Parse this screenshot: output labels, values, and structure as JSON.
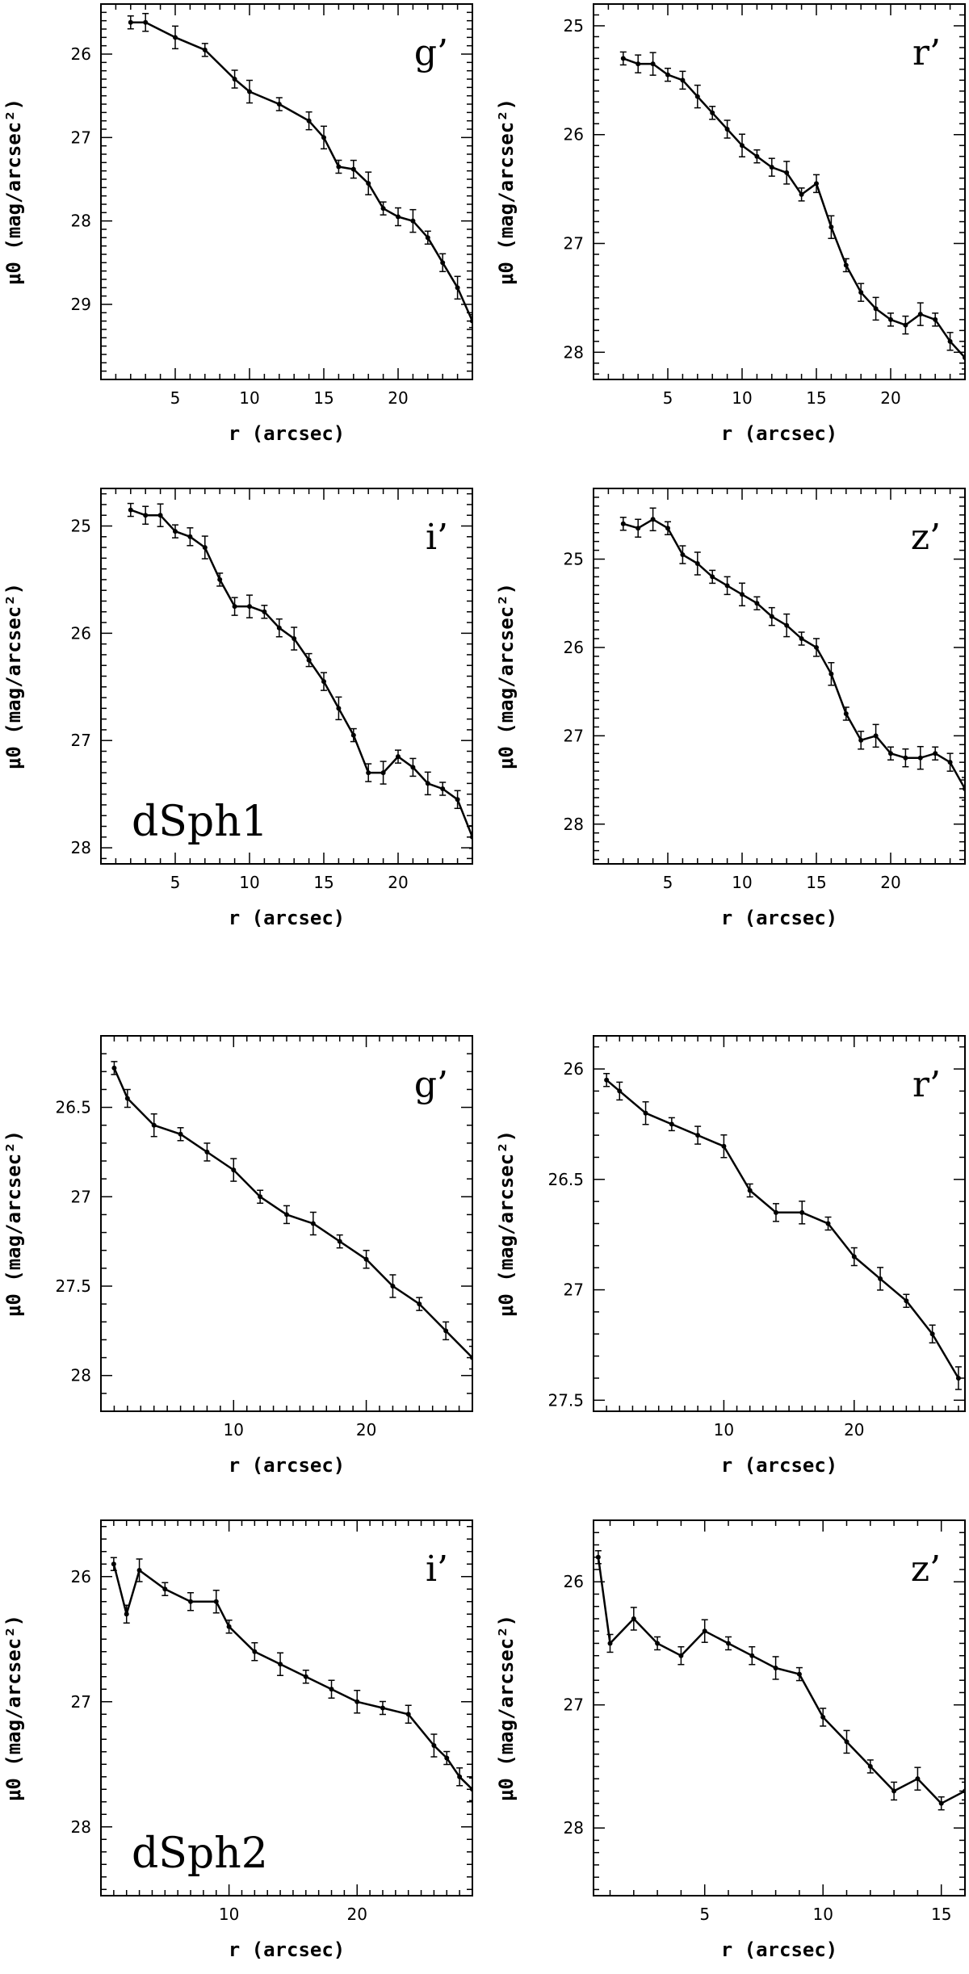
{
  "chart_data": [
    {
      "id": "dsph1-g",
      "type": "line",
      "galaxy_label": "",
      "band": "g’",
      "xlabel": "r (arcsec)",
      "ylabel": "μ0 (mag/arcsec²)",
      "xlim": [
        0,
        25
      ],
      "ylim": [
        29.9,
        25.4
      ],
      "xticks": [
        5,
        10,
        15,
        20
      ],
      "yticks": [
        26,
        27,
        28,
        29
      ],
      "series": [
        {
          "name": "g’",
          "r": [
            2,
            3,
            5,
            7,
            9,
            10,
            12,
            14,
            15,
            16,
            17,
            18,
            19,
            20,
            21,
            22,
            23,
            24,
            25
          ],
          "mu": [
            25.62,
            25.62,
            25.8,
            25.95,
            26.3,
            26.45,
            26.6,
            26.8,
            27.0,
            27.35,
            27.38,
            27.55,
            27.85,
            27.95,
            28.0,
            28.2,
            28.5,
            28.8,
            29.2
          ]
        }
      ]
    },
    {
      "id": "dsph1-r",
      "type": "line",
      "galaxy_label": "",
      "band": "r’",
      "xlabel": "r (arcsec)",
      "ylabel": "μ0 (mag/arcsec²)",
      "xlim": [
        0,
        25
      ],
      "ylim": [
        28.25,
        24.8
      ],
      "xticks": [
        5,
        10,
        15,
        20
      ],
      "yticks": [
        25,
        26,
        27,
        28
      ],
      "series": [
        {
          "name": "r’",
          "r": [
            2,
            3,
            4,
            5,
            6,
            7,
            8,
            9,
            10,
            11,
            12,
            13,
            14,
            15,
            16,
            17,
            18,
            19,
            20,
            21,
            22,
            23,
            24,
            25
          ],
          "mu": [
            25.3,
            25.35,
            25.35,
            25.45,
            25.5,
            25.65,
            25.8,
            25.95,
            26.1,
            26.2,
            26.3,
            26.35,
            26.55,
            26.45,
            26.85,
            27.2,
            27.45,
            27.6,
            27.7,
            27.75,
            27.65,
            27.7,
            27.9,
            28.05
          ]
        }
      ]
    },
    {
      "id": "dsph1-i",
      "type": "line",
      "galaxy_label": "dSph1",
      "band": "i’",
      "xlabel": "r (arcsec)",
      "ylabel": "μ0 (mag/arcsec²)",
      "xlim": [
        0,
        25
      ],
      "ylim": [
        28.15,
        24.65
      ],
      "xticks": [
        5,
        10,
        15,
        20
      ],
      "yticks": [
        25,
        26,
        27,
        28
      ],
      "series": [
        {
          "name": "i’",
          "r": [
            2,
            3,
            4,
            5,
            6,
            7,
            8,
            9,
            10,
            11,
            12,
            13,
            14,
            15,
            16,
            17,
            18,
            19,
            20,
            21,
            22,
            23,
            24,
            25
          ],
          "mu": [
            24.85,
            24.9,
            24.9,
            25.05,
            25.1,
            25.2,
            25.5,
            25.75,
            25.75,
            25.8,
            25.95,
            26.05,
            26.25,
            26.45,
            26.7,
            26.95,
            27.3,
            27.3,
            27.15,
            27.25,
            27.4,
            27.45,
            27.55,
            27.9
          ]
        }
      ]
    },
    {
      "id": "dsph1-z",
      "type": "line",
      "galaxy_label": "",
      "band": "z’",
      "xlabel": "r (arcsec)",
      "ylabel": "μ0 (mag/arcsec²)",
      "xlim": [
        0,
        25
      ],
      "ylim": [
        28.45,
        24.2
      ],
      "xticks": [
        5,
        10,
        15,
        20
      ],
      "yticks": [
        25,
        26,
        27,
        28
      ],
      "series": [
        {
          "name": "z’",
          "r": [
            2,
            3,
            4,
            5,
            6,
            7,
            8,
            9,
            10,
            11,
            12,
            13,
            14,
            15,
            16,
            17,
            18,
            19,
            20,
            21,
            22,
            23,
            24,
            25
          ],
          "mu": [
            24.6,
            24.65,
            24.55,
            24.65,
            24.95,
            25.05,
            25.2,
            25.3,
            25.4,
            25.5,
            25.65,
            25.75,
            25.9,
            26.0,
            26.3,
            26.75,
            27.05,
            27.0,
            27.2,
            27.25,
            27.25,
            27.2,
            27.3,
            27.6
          ]
        }
      ]
    },
    {
      "id": "dsph2-g",
      "type": "line",
      "galaxy_label": "",
      "band": "g’",
      "xlabel": "r (arcsec)",
      "ylabel": "μ0 (mag/arcsec²)",
      "xlim": [
        0,
        28
      ],
      "ylim": [
        28.2,
        26.1
      ],
      "xticks": [
        10,
        20
      ],
      "yticks": [
        26.5,
        27,
        27.5,
        28
      ],
      "series": [
        {
          "name": "g’",
          "r": [
            1,
            2,
            4,
            6,
            8,
            10,
            12,
            14,
            16,
            18,
            20,
            22,
            24,
            26,
            28
          ],
          "mu": [
            26.28,
            26.45,
            26.6,
            26.65,
            26.75,
            26.85,
            27.0,
            27.1,
            27.15,
            27.25,
            27.35,
            27.5,
            27.6,
            27.75,
            27.9
          ]
        }
      ]
    },
    {
      "id": "dsph2-r",
      "type": "line",
      "galaxy_label": "",
      "band": "r’",
      "xlabel": "r (arcsec)",
      "ylabel": "μ0 (mag/arcsec²)",
      "xlim": [
        0,
        28.5
      ],
      "ylim": [
        27.55,
        25.85
      ],
      "xticks": [
        10,
        20
      ],
      "yticks": [
        26,
        26.5,
        27,
        27.5
      ],
      "series": [
        {
          "name": "r’",
          "r": [
            1,
            2,
            4,
            6,
            8,
            10,
            12,
            14,
            16,
            18,
            20,
            22,
            24,
            26,
            28
          ],
          "mu": [
            26.05,
            26.1,
            26.2,
            26.25,
            26.3,
            26.35,
            26.55,
            26.65,
            26.65,
            26.7,
            26.85,
            26.95,
            27.05,
            27.2,
            27.4
          ]
        }
      ]
    },
    {
      "id": "dsph2-i",
      "type": "line",
      "galaxy_label": "dSph2",
      "band": "i’",
      "xlabel": "r (arcsec)",
      "ylabel": "μ0 (mag/arcsec²)",
      "xlim": [
        0,
        29
      ],
      "ylim": [
        28.55,
        25.55
      ],
      "xticks": [
        10,
        20
      ],
      "yticks": [
        26,
        27,
        28
      ],
      "series": [
        {
          "name": "i’",
          "r": [
            1,
            2,
            3,
            5,
            7,
            9,
            10,
            12,
            14,
            16,
            18,
            20,
            22,
            24,
            26,
            27,
            28,
            29
          ],
          "mu": [
            25.9,
            26.3,
            25.95,
            26.1,
            26.2,
            26.2,
            26.4,
            26.6,
            26.7,
            26.8,
            26.9,
            27.0,
            27.05,
            27.1,
            27.35,
            27.45,
            27.6,
            27.7
          ]
        }
      ]
    },
    {
      "id": "dsph2-z",
      "type": "line",
      "galaxy_label": "",
      "band": "z’",
      "xlabel": "r (arcsec)",
      "ylabel": "μ0 (mag/arcsec²)",
      "xlim": [
        0.3,
        16
      ],
      "ylim": [
        28.55,
        25.5
      ],
      "xticks": [
        5,
        10,
        15
      ],
      "yticks": [
        26,
        27,
        28
      ],
      "series": [
        {
          "name": "z’",
          "r": [
            0.5,
            1,
            2,
            3,
            4,
            5,
            6,
            7,
            8,
            9,
            10,
            11,
            12,
            13,
            14,
            15,
            16
          ],
          "mu": [
            25.8,
            26.5,
            26.3,
            26.5,
            26.6,
            26.4,
            26.5,
            26.6,
            26.7,
            26.75,
            27.1,
            27.3,
            27.5,
            27.7,
            27.6,
            27.8,
            27.7
          ]
        }
      ]
    }
  ]
}
